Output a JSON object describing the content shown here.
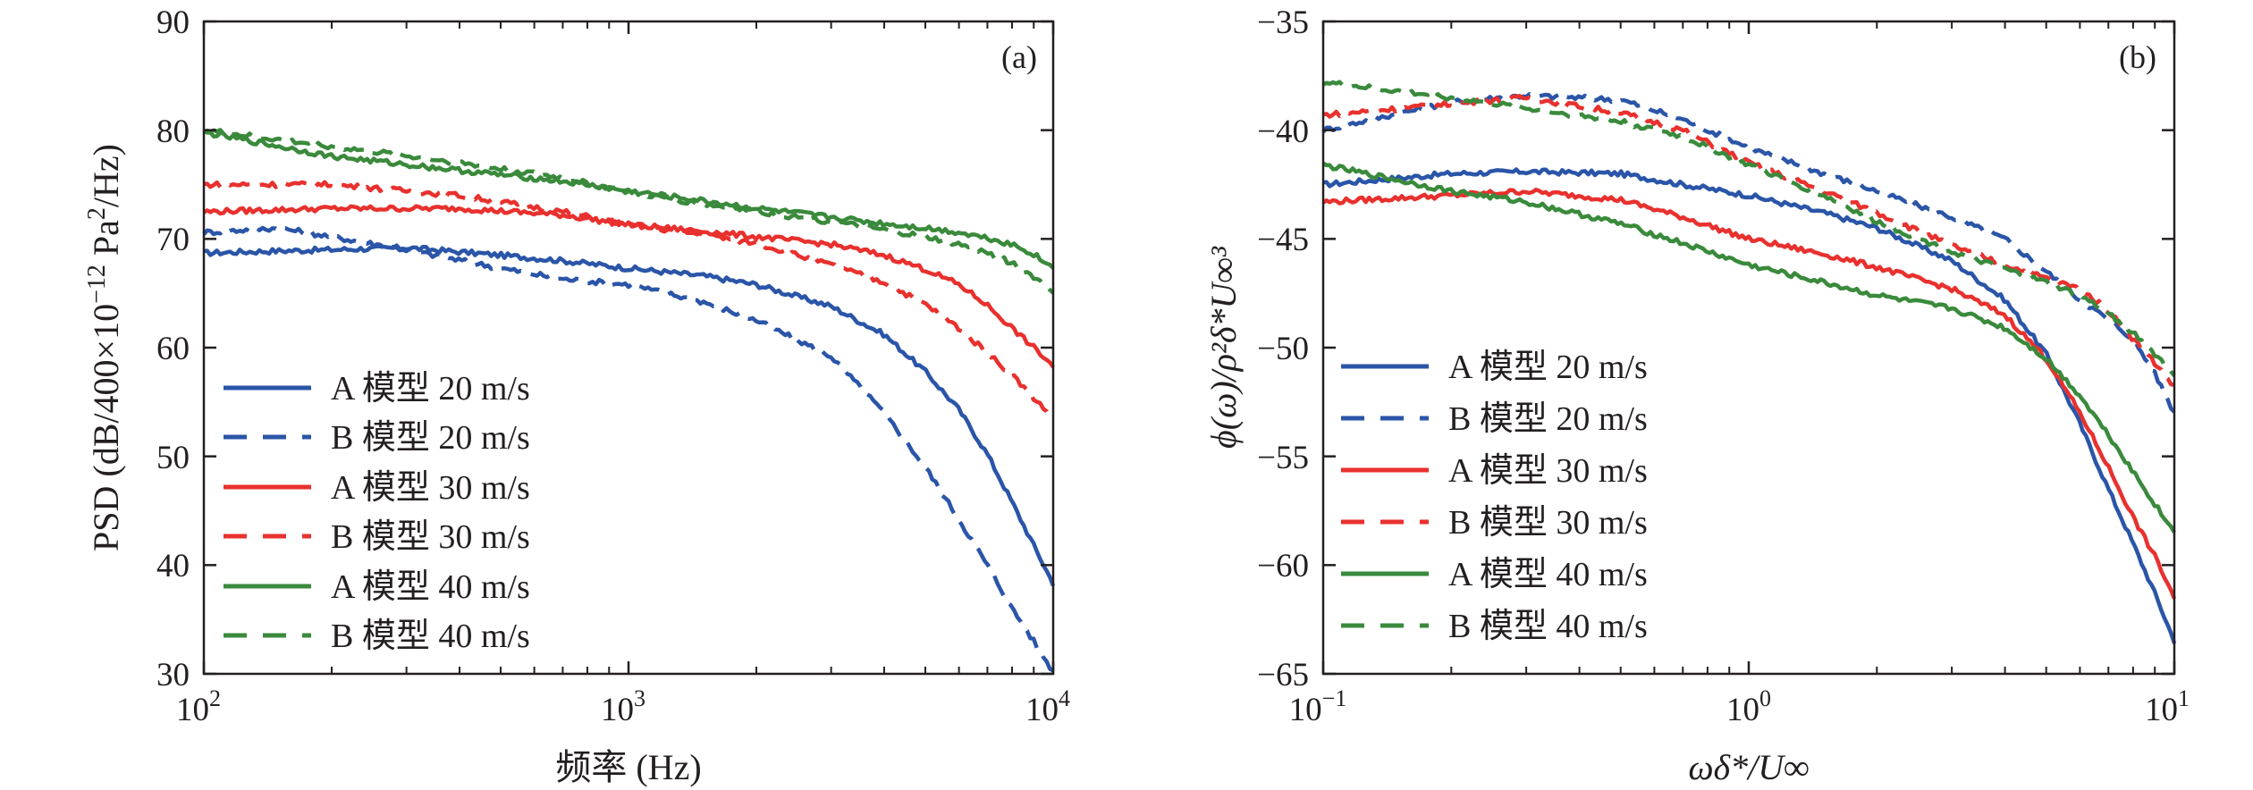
{
  "colors": {
    "A_20": "#2a55a8",
    "B_20": "#2a55a8",
    "A_30": "#e8312e",
    "B_30": "#e8312e",
    "A_40": "#3a8a3c",
    "B_40": "#3a8a3c",
    "axis": "#231f20"
  },
  "chart_data": [
    {
      "type": "line",
      "panel_label": "(a)",
      "xscale": "log",
      "xlim": [
        100,
        10000
      ],
      "ylim": [
        30,
        90
      ],
      "x_ticks": [
        {
          "base": "10",
          "exp": "2"
        },
        {
          "base": "10",
          "exp": "3"
        },
        {
          "base": "10",
          "exp": "4"
        }
      ],
      "y_ticks": [
        "30",
        "40",
        "50",
        "60",
        "70",
        "80",
        "90"
      ],
      "xlabel": "频率 (Hz)",
      "ylabel": {
        "main": "PSD (dB/400×10",
        "exp": "−12",
        "unit": " Pa",
        "unit_exp": "2",
        "tail": "/Hz)"
      },
      "legend_position": "lower-left",
      "series": [
        {
          "name": "A 模型 20 m/s",
          "style": "solid",
          "color_key": "A_20",
          "points": [
            [
              100,
              68.7
            ],
            [
              150,
              68.9
            ],
            [
              200,
              69.0
            ],
            [
              300,
              69.2
            ],
            [
              500,
              68.5
            ],
            [
              700,
              68.0
            ],
            [
              1000,
              67.3
            ],
            [
              1500,
              66.6
            ],
            [
              2000,
              65.8
            ],
            [
              3000,
              63.8
            ],
            [
              4000,
              61.2
            ],
            [
              5000,
              57.8
            ],
            [
              6000,
              54.3
            ],
            [
              7000,
              50.2
            ],
            [
              8000,
              45.8
            ],
            [
              9000,
              41.8
            ],
            [
              10000,
              38.3
            ]
          ]
        },
        {
          "name": "B 模型 20 m/s",
          "style": "dashed",
          "color_key": "B_20",
          "points": [
            [
              100,
              70.6
            ],
            [
              150,
              71.0
            ],
            [
              200,
              70.2
            ],
            [
              300,
              69.0
            ],
            [
              500,
              67.3
            ],
            [
              700,
              66.3
            ],
            [
              1000,
              65.8
            ],
            [
              1500,
              64.2
            ],
            [
              2000,
              62.5
            ],
            [
              3000,
              59.2
            ],
            [
              4000,
              54.0
            ],
            [
              5000,
              49.0
            ],
            [
              6000,
              44.2
            ],
            [
              7000,
              40.0
            ],
            [
              8000,
              36.0
            ],
            [
              9000,
              33.0
            ],
            [
              10000,
              30.2
            ]
          ]
        },
        {
          "name": "A 模型 30 m/s",
          "style": "solid",
          "color_key": "A_30",
          "points": [
            [
              100,
              72.5
            ],
            [
              200,
              72.8
            ],
            [
              400,
              72.8
            ],
            [
              700,
              72.2
            ],
            [
              1000,
              71.3
            ],
            [
              1500,
              70.7
            ],
            [
              2000,
              70.2
            ],
            [
              3000,
              69.5
            ],
            [
              4000,
              68.5
            ],
            [
              5000,
              67.2
            ],
            [
              6000,
              65.8
            ],
            [
              7000,
              63.9
            ],
            [
              8000,
              61.8
            ],
            [
              9000,
              60.0
            ],
            [
              10000,
              58.3
            ]
          ]
        },
        {
          "name": "B 模型 30 m/s",
          "style": "dashed",
          "color_key": "B_30",
          "points": [
            [
              100,
              75.0
            ],
            [
              200,
              75.0
            ],
            [
              400,
              74.0
            ],
            [
              700,
              72.5
            ],
            [
              1000,
              71.3
            ],
            [
              1500,
              70.4
            ],
            [
              2000,
              69.6
            ],
            [
              3000,
              67.6
            ],
            [
              4000,
              66.0
            ],
            [
              5000,
              64.0
            ],
            [
              6000,
              61.8
            ],
            [
              7000,
              59.5
            ],
            [
              8000,
              57.5
            ],
            [
              9000,
              55.4
            ],
            [
              10000,
              53.5
            ]
          ]
        },
        {
          "name": "A 模型 40 m/s",
          "style": "solid",
          "color_key": "A_40",
          "points": [
            [
              100,
              79.8
            ],
            [
              200,
              77.6
            ],
            [
              400,
              76.3
            ],
            [
              700,
              75.3
            ],
            [
              1000,
              74.4
            ],
            [
              1500,
              73.5
            ],
            [
              2000,
              72.8
            ],
            [
              3000,
              72.0
            ],
            [
              4000,
              71.4
            ],
            [
              5000,
              71.0
            ],
            [
              6000,
              70.6
            ],
            [
              7000,
              70.1
            ],
            [
              8000,
              69.5
            ],
            [
              9000,
              68.6
            ],
            [
              10000,
              67.3
            ]
          ]
        },
        {
          "name": "B 模型 40 m/s",
          "style": "dashed",
          "color_key": "B_40",
          "points": [
            [
              100,
              80.0
            ],
            [
              200,
              78.5
            ],
            [
              400,
              77.0
            ],
            [
              700,
              75.6
            ],
            [
              1000,
              74.3
            ],
            [
              1500,
              73.2
            ],
            [
              2000,
              72.5
            ],
            [
              3000,
              71.6
            ],
            [
              4000,
              70.8
            ],
            [
              5000,
              70.2
            ],
            [
              6000,
              69.5
            ],
            [
              7000,
              68.7
            ],
            [
              8000,
              67.8
            ],
            [
              9000,
              66.5
            ],
            [
              10000,
              65.2
            ]
          ]
        }
      ]
    },
    {
      "type": "line",
      "panel_label": "(b)",
      "xscale": "log",
      "xlim": [
        0.1,
        10
      ],
      "ylim": [
        -65,
        -35
      ],
      "x_ticks": [
        {
          "base": "10",
          "exp": "−1"
        },
        {
          "base": "10",
          "exp": "0"
        },
        {
          "base": "10",
          "exp": "1"
        }
      ],
      "y_ticks": [
        "−65",
        "−60",
        "−55",
        "−50",
        "−45",
        "−40",
        "−35"
      ],
      "xlabel": "ωδ*/U∞",
      "ylabel": "ϕ(ω)/ρ²δ*U∞³",
      "legend_position": "lower-left",
      "series": [
        {
          "name": "A 模型 20 m/s",
          "style": "solid",
          "color_key": "A_20",
          "points": [
            [
              0.1,
              -42.5
            ],
            [
              0.2,
              -42.0
            ],
            [
              0.3,
              -41.9
            ],
            [
              0.5,
              -42.0
            ],
            [
              0.7,
              -42.5
            ],
            [
              1.0,
              -43.0
            ],
            [
              1.5,
              -43.8
            ],
            [
              2.0,
              -44.5
            ],
            [
              3.0,
              -46.0
            ],
            [
              4.0,
              -47.8
            ],
            [
              5.0,
              -50.3
            ],
            [
              6.0,
              -53.5
            ],
            [
              7.0,
              -56.5
            ],
            [
              8.0,
              -59.0
            ],
            [
              9.0,
              -61.3
            ],
            [
              10.0,
              -63.5
            ]
          ]
        },
        {
          "name": "B 模型 20 m/s",
          "style": "dashed",
          "color_key": "B_20",
          "points": [
            [
              0.1,
              -40.0
            ],
            [
              0.2,
              -38.7
            ],
            [
              0.3,
              -38.4
            ],
            [
              0.5,
              -38.6
            ],
            [
              0.7,
              -39.5
            ],
            [
              1.0,
              -40.8
            ],
            [
              1.5,
              -42.0
            ],
            [
              2.0,
              -42.8
            ],
            [
              3.0,
              -44.0
            ],
            [
              4.0,
              -45.0
            ],
            [
              5.0,
              -46.5
            ],
            [
              6.0,
              -47.8
            ],
            [
              7.0,
              -48.7
            ],
            [
              8.0,
              -49.6
            ],
            [
              9.0,
              -51.2
            ],
            [
              10.0,
              -53.0
            ]
          ]
        },
        {
          "name": "A 模型 30 m/s",
          "style": "solid",
          "color_key": "A_30",
          "points": [
            [
              0.1,
              -43.3
            ],
            [
              0.2,
              -43.0
            ],
            [
              0.3,
              -42.8
            ],
            [
              0.5,
              -43.2
            ],
            [
              0.7,
              -44.0
            ],
            [
              1.0,
              -45.0
            ],
            [
              1.5,
              -45.7
            ],
            [
              2.0,
              -46.3
            ],
            [
              3.0,
              -47.3
            ],
            [
              4.0,
              -48.5
            ],
            [
              5.0,
              -50.5
            ],
            [
              6.0,
              -53.0
            ],
            [
              7.0,
              -55.5
            ],
            [
              8.0,
              -57.8
            ],
            [
              9.0,
              -59.6
            ],
            [
              10.0,
              -61.5
            ]
          ]
        },
        {
          "name": "B 模型 30 m/s",
          "style": "dashed",
          "color_key": "B_30",
          "points": [
            [
              0.1,
              -39.3
            ],
            [
              0.2,
              -38.8
            ],
            [
              0.3,
              -38.5
            ],
            [
              0.5,
              -39.2
            ],
            [
              0.7,
              -40.0
            ],
            [
              1.0,
              -41.5
            ],
            [
              1.5,
              -42.8
            ],
            [
              2.0,
              -43.8
            ],
            [
              3.0,
              -45.3
            ],
            [
              4.0,
              -46.2
            ],
            [
              5.0,
              -46.8
            ],
            [
              6.0,
              -47.3
            ],
            [
              7.0,
              -48.3
            ],
            [
              8.0,
              -49.6
            ],
            [
              9.0,
              -50.7
            ],
            [
              10.0,
              -51.8
            ]
          ]
        },
        {
          "name": "A 模型 40 m/s",
          "style": "solid",
          "color_key": "A_40",
          "points": [
            [
              0.1,
              -41.6
            ],
            [
              0.2,
              -42.8
            ],
            [
              0.3,
              -43.3
            ],
            [
              0.5,
              -44.3
            ],
            [
              0.7,
              -45.2
            ],
            [
              1.0,
              -46.2
            ],
            [
              1.5,
              -47.0
            ],
            [
              2.0,
              -47.6
            ],
            [
              3.0,
              -48.2
            ],
            [
              4.0,
              -49.1
            ],
            [
              5.0,
              -50.5
            ],
            [
              6.0,
              -52.2
            ],
            [
              7.0,
              -54.0
            ],
            [
              8.0,
              -55.7
            ],
            [
              9.0,
              -57.2
            ],
            [
              10.0,
              -58.5
            ]
          ]
        },
        {
          "name": "B 模型 40 m/s",
          "style": "dashed",
          "color_key": "B_40",
          "points": [
            [
              0.1,
              -37.8
            ],
            [
              0.2,
              -38.5
            ],
            [
              0.3,
              -39.0
            ],
            [
              0.5,
              -39.6
            ],
            [
              0.7,
              -40.3
            ],
            [
              1.0,
              -41.6
            ],
            [
              1.5,
              -43.0
            ],
            [
              2.0,
              -44.2
            ],
            [
              3.0,
              -45.6
            ],
            [
              4.0,
              -46.4
            ],
            [
              5.0,
              -47.0
            ],
            [
              6.0,
              -47.6
            ],
            [
              7.0,
              -48.4
            ],
            [
              8.0,
              -49.3
            ],
            [
              9.0,
              -50.3
            ],
            [
              10.0,
              -51.2
            ]
          ]
        }
      ]
    }
  ]
}
